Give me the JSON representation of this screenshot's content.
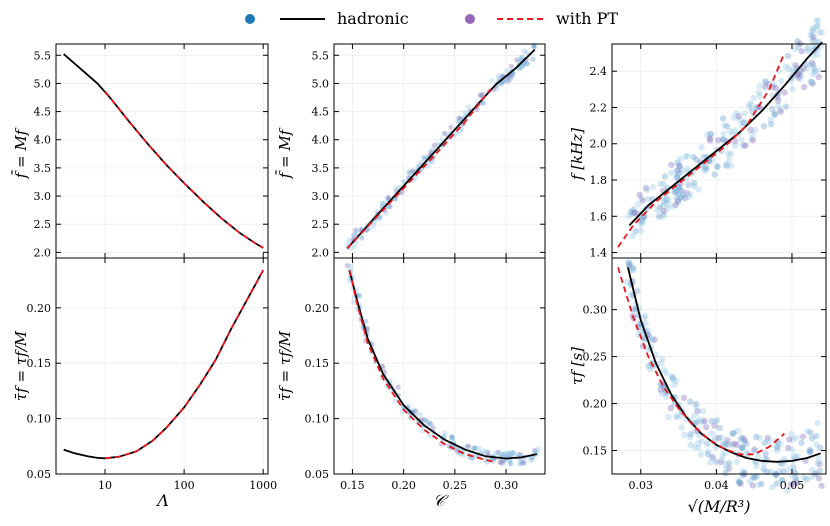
{
  "legend": {
    "hadronic": "hadronic",
    "with_pt": "with PT",
    "colors": {
      "hadronic_dot": "#1f77b4",
      "pt_dot": "#9467bd",
      "hadronic_line": "#000000",
      "pt_line": "#e8161a",
      "band_light": "#8cc4e2",
      "band_mid": "#5b98cc",
      "band_purple": "#7a62b4"
    }
  },
  "chart_data": [
    {
      "id": "top-left",
      "type": "line",
      "xscale": "log",
      "xlabel": "",
      "ylabel": "f̄ = Mf",
      "xlim": [
        2.4,
        1150
      ],
      "ylim": [
        1.9,
        5.7
      ],
      "xticks": [],
      "yticks": [
        2.0,
        2.5,
        3.0,
        3.5,
        4.0,
        4.5,
        5.0,
        5.5
      ],
      "series": [
        {
          "name": "hadronic",
          "style": "solid",
          "color": "#000000",
          "x": [
            3,
            5,
            8,
            12,
            20,
            35,
            60,
            100,
            180,
            300,
            500,
            800,
            1000
          ],
          "y": [
            5.52,
            5.25,
            5.0,
            4.72,
            4.33,
            3.92,
            3.55,
            3.23,
            2.88,
            2.6,
            2.35,
            2.16,
            2.08
          ]
        },
        {
          "name": "with PT",
          "style": "dashed",
          "color": "#e8161a",
          "x": [
            10,
            20,
            35,
            60,
            100,
            180,
            300,
            500,
            800,
            1000
          ],
          "y": [
            4.86,
            4.33,
            3.92,
            3.55,
            3.23,
            2.88,
            2.6,
            2.35,
            2.16,
            2.08
          ]
        }
      ]
    },
    {
      "id": "bottom-left",
      "type": "line",
      "xscale": "log",
      "xlabel": "Λ",
      "ylabel": "τ̄f = τf/M",
      "xlim": [
        2.4,
        1150
      ],
      "ylim": [
        0.05,
        0.245
      ],
      "xticks": [
        "10",
        "100",
        "1000"
      ],
      "yticks": [
        0.05,
        0.1,
        0.15,
        0.2
      ],
      "series": [
        {
          "name": "hadronic",
          "style": "solid",
          "color": "#000000",
          "x": [
            3,
            4,
            6,
            8,
            10,
            15,
            25,
            40,
            60,
            100,
            160,
            250,
            400,
            600,
            1000
          ],
          "y": [
            0.072,
            0.069,
            0.066,
            0.0645,
            0.0642,
            0.0655,
            0.0705,
            0.08,
            0.092,
            0.11,
            0.131,
            0.153,
            0.182,
            0.205,
            0.234
          ]
        },
        {
          "name": "with PT",
          "style": "dashed",
          "color": "#e8161a",
          "x": [
            10,
            15,
            25,
            40,
            60,
            100,
            160,
            250,
            400,
            600,
            1000
          ],
          "y": [
            0.0642,
            0.0655,
            0.0705,
            0.08,
            0.092,
            0.11,
            0.131,
            0.153,
            0.182,
            0.205,
            0.234
          ]
        }
      ]
    },
    {
      "id": "top-middle",
      "type": "line",
      "xlabel": "",
      "ylabel": "f̄ = Mf",
      "xlim": [
        0.132,
        0.338
      ],
      "ylim": [
        1.9,
        5.7
      ],
      "xticks": [],
      "yticks": [
        2.0,
        2.5,
        3.0,
        3.5,
        4.0,
        4.5,
        5.0,
        5.5
      ],
      "series": [
        {
          "name": "hadronic",
          "style": "solid",
          "color": "#000000",
          "x": [
            0.145,
            0.17,
            0.2,
            0.23,
            0.26,
            0.29,
            0.31,
            0.328
          ],
          "y": [
            2.07,
            2.58,
            3.18,
            3.78,
            4.38,
            4.98,
            5.28,
            5.6
          ]
        },
        {
          "name": "with PT",
          "style": "dashed",
          "color": "#e8161a",
          "x": [
            0.145,
            0.17,
            0.2,
            0.23,
            0.26,
            0.285
          ],
          "y": [
            2.07,
            2.56,
            3.14,
            3.72,
            4.32,
            4.9
          ]
        }
      ]
    },
    {
      "id": "bottom-middle",
      "type": "line",
      "xlabel": "𝒞",
      "ylabel": "τ̄f = τf/M",
      "xlim": [
        0.132,
        0.338
      ],
      "ylim": [
        0.05,
        0.245
      ],
      "xticks": [
        "0.15",
        "0.20",
        "0.25",
        "0.30"
      ],
      "yticks": [
        0.05,
        0.1,
        0.15,
        0.2
      ],
      "series": [
        {
          "name": "hadronic",
          "style": "solid",
          "color": "#000000",
          "x": [
            0.147,
            0.155,
            0.165,
            0.18,
            0.2,
            0.22,
            0.24,
            0.26,
            0.28,
            0.3,
            0.315,
            0.33
          ],
          "y": [
            0.234,
            0.205,
            0.172,
            0.14,
            0.112,
            0.094,
            0.081,
            0.072,
            0.066,
            0.064,
            0.065,
            0.068
          ]
        },
        {
          "name": "with PT",
          "style": "dashed",
          "color": "#e8161a",
          "x": [
            0.147,
            0.155,
            0.165,
            0.18,
            0.2,
            0.22,
            0.24,
            0.26,
            0.275,
            0.288
          ],
          "y": [
            0.234,
            0.202,
            0.168,
            0.136,
            0.108,
            0.09,
            0.077,
            0.068,
            0.064,
            0.061
          ]
        }
      ]
    },
    {
      "id": "top-right",
      "type": "line",
      "xlabel": "",
      "ylabel": "f [kHz]",
      "xlim": [
        0.0262,
        0.0545
      ],
      "ylim": [
        1.37,
        2.55
      ],
      "xticks": [],
      "yticks": [
        1.4,
        1.6,
        1.8,
        2.0,
        2.2,
        2.4
      ],
      "series": [
        {
          "name": "hadronic",
          "style": "solid",
          "color": "#000000",
          "x": [
            0.0285,
            0.031,
            0.034,
            0.037,
            0.04,
            0.043,
            0.046,
            0.049,
            0.052,
            0.054
          ],
          "y": [
            1.55,
            1.66,
            1.76,
            1.86,
            1.96,
            2.06,
            2.18,
            2.32,
            2.47,
            2.56
          ]
        },
        {
          "name": "with PT",
          "style": "dashed",
          "color": "#e8161a",
          "x": [
            0.027,
            0.029,
            0.032,
            0.035,
            0.038,
            0.041,
            0.044,
            0.047,
            0.049
          ],
          "y": [
            1.43,
            1.55,
            1.68,
            1.78,
            1.88,
            1.98,
            2.1,
            2.3,
            2.5
          ]
        }
      ]
    },
    {
      "id": "bottom-right",
      "type": "line",
      "xlabel": "√(M/R³)",
      "ylabel": "τf [s]",
      "xlim": [
        0.0262,
        0.0545
      ],
      "ylim": [
        0.125,
        0.355
      ],
      "xticks": [
        "0.03",
        "0.04",
        "0.05"
      ],
      "yticks": [
        0.15,
        0.2,
        0.25,
        0.3
      ],
      "series": [
        {
          "name": "hadronic",
          "style": "solid",
          "color": "#000000",
          "x": [
            0.0283,
            0.03,
            0.032,
            0.034,
            0.036,
            0.038,
            0.04,
            0.042,
            0.044,
            0.046,
            0.048,
            0.05,
            0.052,
            0.0538
          ],
          "y": [
            0.345,
            0.289,
            0.243,
            0.21,
            0.186,
            0.168,
            0.156,
            0.148,
            0.142,
            0.139,
            0.138,
            0.139,
            0.142,
            0.147
          ]
        },
        {
          "name": "with PT",
          "style": "dashed",
          "color": "#e8161a",
          "x": [
            0.027,
            0.029,
            0.031,
            0.033,
            0.035,
            0.037,
            0.039,
            0.041,
            0.043,
            0.045,
            0.047,
            0.049
          ],
          "y": [
            0.345,
            0.292,
            0.25,
            0.218,
            0.195,
            0.176,
            0.162,
            0.152,
            0.146,
            0.146,
            0.154,
            0.168
          ]
        }
      ]
    }
  ]
}
